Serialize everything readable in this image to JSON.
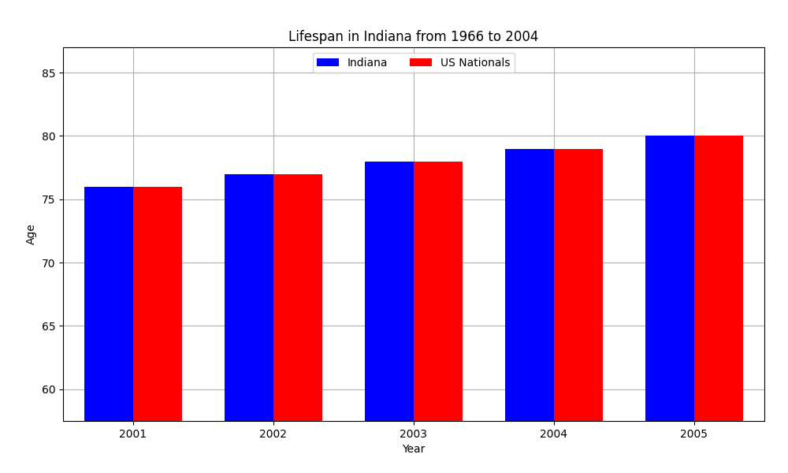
{
  "chart_data": {
    "type": "bar",
    "title": "Lifespan in Indiana from 1966 to 2004",
    "x_label": "Year",
    "y_label": "Age",
    "categories": [
      "2001",
      "2002",
      "2003",
      "2004",
      "2005"
    ],
    "series": [
      {
        "name": "Indiana",
        "color": "#0000ff",
        "values": [
          76,
          77,
          78,
          79,
          80
        ]
      },
      {
        "name": "US Nationals",
        "color": "#ff0000",
        "values": [
          76,
          77,
          78,
          79,
          80
        ]
      }
    ],
    "ylim": [
      57.5,
      87
    ],
    "yticks": [
      60,
      65,
      70,
      75,
      80,
      85
    ],
    "grid": true,
    "legend": "upper center"
  }
}
